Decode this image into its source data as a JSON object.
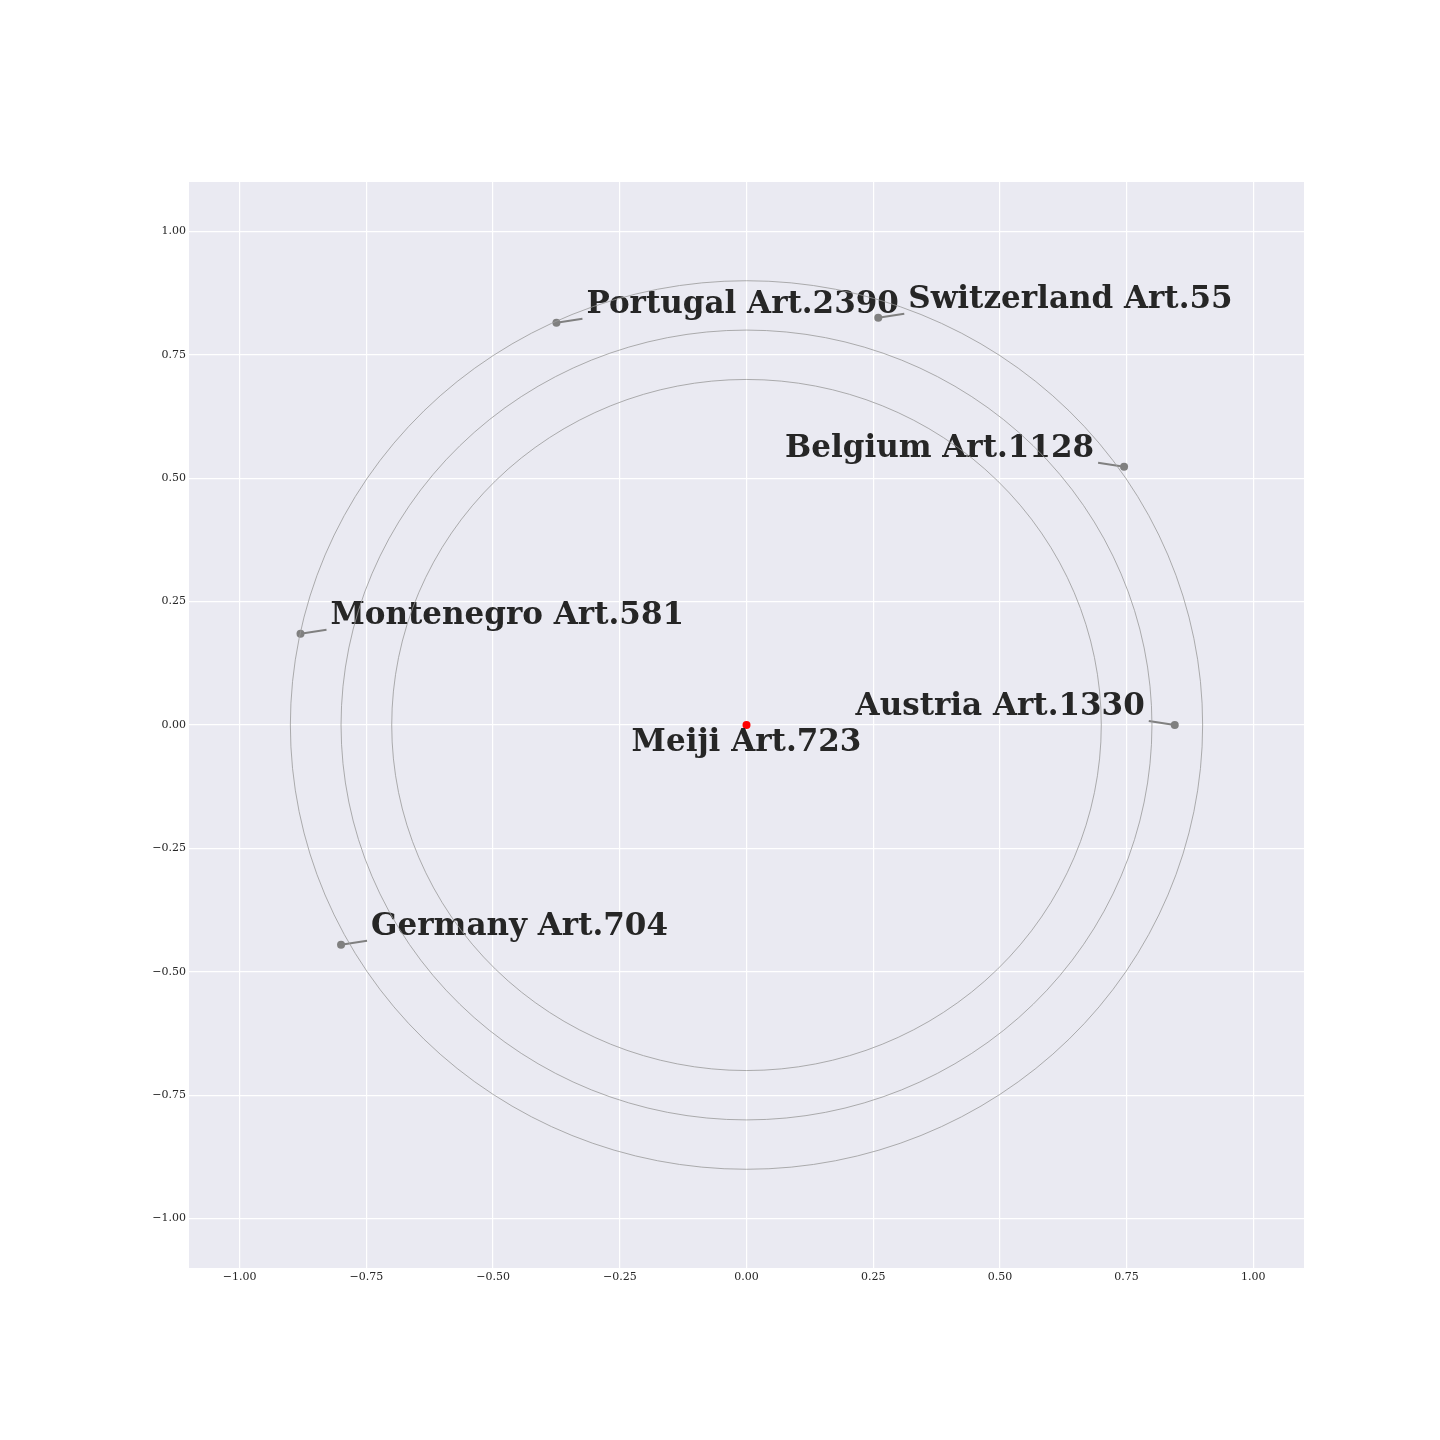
{
  "chart_data": {
    "type": "scatter",
    "xlim": [
      -1.1,
      1.1
    ],
    "ylim": [
      -1.1,
      1.1
    ],
    "xticks": [
      {
        "value": -1,
        "label": "−1.00"
      },
      {
        "value": -0.75,
        "label": "−0.75"
      },
      {
        "value": -0.5,
        "label": "−0.50"
      },
      {
        "value": -0.25,
        "label": "−0.25"
      },
      {
        "value": 0,
        "label": "0.00"
      },
      {
        "value": 0.25,
        "label": "0.25"
      },
      {
        "value": 0.5,
        "label": "0.50"
      },
      {
        "value": 0.75,
        "label": "0.75"
      },
      {
        "value": 1,
        "label": "1.00"
      }
    ],
    "yticks": [
      {
        "value": -1,
        "label": "−1.00"
      },
      {
        "value": -0.75,
        "label": "−0.75"
      },
      {
        "value": -0.5,
        "label": "−0.50"
      },
      {
        "value": -0.25,
        "label": "−0.25"
      },
      {
        "value": 0,
        "label": "0.00"
      },
      {
        "value": 0.25,
        "label": "0.25"
      },
      {
        "value": 0.5,
        "label": "0.50"
      },
      {
        "value": 0.75,
        "label": "0.75"
      },
      {
        "value": 1,
        "label": "1.00"
      }
    ],
    "grid": true,
    "series": [
      {
        "type": "scatter",
        "color": "#808080",
        "x": [
          0.26,
          -0.375,
          0.745,
          -0.88,
          0.845,
          -0.8
        ],
        "values": [
          0.825,
          0.815,
          0.523,
          0.185,
          0,
          -0.445
        ]
      },
      {
        "type": "scatter",
        "color": "#ff0000",
        "x": [
          0
        ],
        "values": [
          0
        ]
      }
    ],
    "annotations": [
      {
        "text": "Switzerland Art.55",
        "x": 0.26,
        "y": 0.825
      },
      {
        "text": "Portugal Art.2390",
        "x": -0.375,
        "y": 0.815
      },
      {
        "text": "Belgium Art.1128",
        "x": 0.745,
        "y": 0.523
      },
      {
        "text": "Montenegro Art.581",
        "x": -0.88,
        "y": 0.185
      },
      {
        "text": "Austria Art.1330",
        "x": 0.845,
        "y": 0
      },
      {
        "text": "Germany Art.704",
        "x": -0.8,
        "y": -0.445
      },
      {
        "text": "Meiji Art.723",
        "x": 0,
        "y": 0
      }
    ]
  }
}
